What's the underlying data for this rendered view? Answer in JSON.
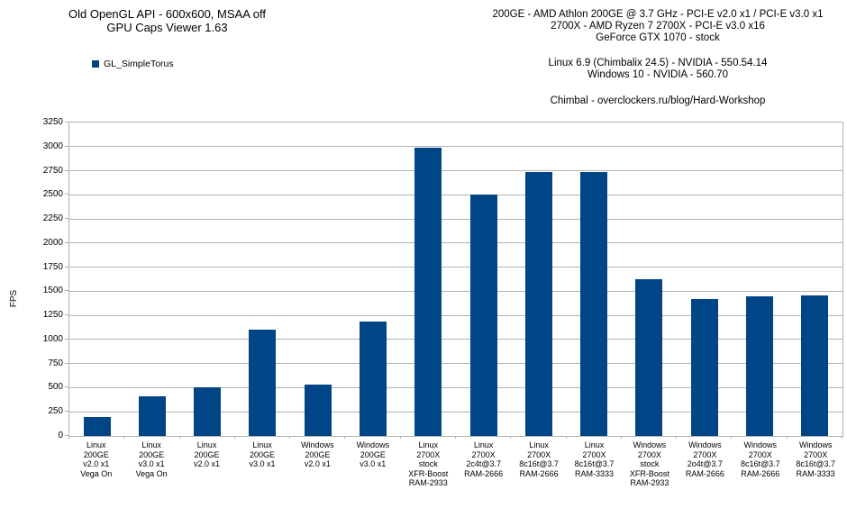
{
  "header": {
    "title_line1": "Old OpenGL API - 600x600, MSAA off",
    "title_line2": "GPU Caps Viewer 1.63",
    "system_line1": "200GE - AMD Athlon 200GE @ 3.7 GHz - PCI-E v2.0 x1 / PCI-E v3.0 x1",
    "system_line2": "2700X - AMD Ryzen 7 2700X - PCI-E v3.0 x16",
    "system_line3": "GeForce GTX 1070 - stock",
    "driver_line1": "Linux 6.9 (Chimbalix 24.5) - NVIDIA - 550.54.14",
    "driver_line2": "Windows 10 - NVIDIA - 560.70",
    "credit_line": "Chimbal - overclockers.ru/blog/Hard-Workshop"
  },
  "legend": {
    "label": "GL_SimpleTorus",
    "color": "#004586"
  },
  "chart_data": {
    "type": "bar",
    "title": "Old OpenGL API - 600x600, MSAA off — GPU Caps Viewer 1.63",
    "xlabel": "",
    "ylabel": "FPS",
    "ylim": [
      0,
      3250
    ],
    "ytick_step": 250,
    "grid": true,
    "legend_position": "top-left",
    "bar_color": "#004586",
    "grid_color": "#b3b3b3",
    "categories": [
      [
        "Linux",
        "200GE",
        "v2.0 x1",
        "Vega On"
      ],
      [
        "Linux",
        "200GE",
        "v3.0 x1",
        "Vega On"
      ],
      [
        "Linux",
        "200GE",
        "v2.0 x1"
      ],
      [
        "Linux",
        "200GE",
        "v3.0 x1"
      ],
      [
        "Windows",
        "200GE",
        "v2.0 x1"
      ],
      [
        "Windows",
        "200GE",
        "v3.0 x1"
      ],
      [
        "Linux",
        "2700X",
        "stock",
        "XFR-Boost",
        "RAM-2933"
      ],
      [
        "Linux",
        "2700X",
        "2c4t@3.7",
        "RAM-2666"
      ],
      [
        "Linux",
        "2700X",
        "8c16t@3.7",
        "RAM-2666"
      ],
      [
        "Linux",
        "2700X",
        "8c16t@3.7",
        "RAM-3333"
      ],
      [
        "Windows",
        "2700X",
        "stock",
        "XFR-Boost",
        "RAM-2933"
      ],
      [
        "Windows",
        "2700X",
        "2o4t@3.7",
        "RAM-2666"
      ],
      [
        "Windows",
        "2700X",
        "8c16t@3.7",
        "RAM-2666"
      ],
      [
        "Windows",
        "2700X",
        "8c16t@3.7",
        "RAM-3333"
      ]
    ],
    "series": [
      {
        "name": "GL_SimpleTorus",
        "values": [
          200,
          410,
          505,
          1105,
          535,
          1185,
          2990,
          2500,
          2735,
          2740,
          1625,
          1420,
          1445,
          1460
        ]
      }
    ]
  }
}
